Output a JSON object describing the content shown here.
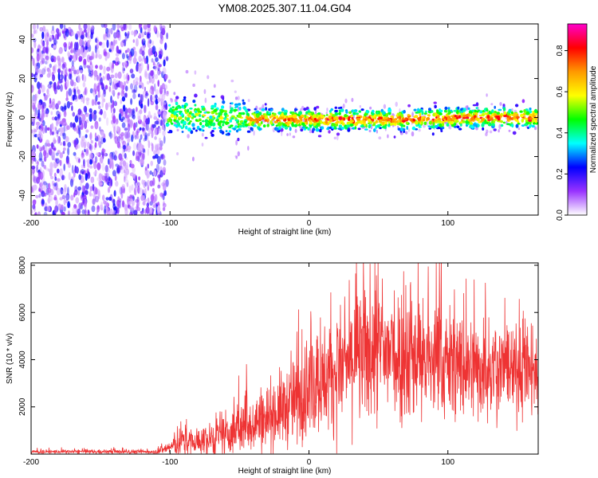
{
  "title": "YM08.2025.307.11.04.G04",
  "chart_data": [
    {
      "type": "heatmap",
      "xlabel": "Height of straight line (km)",
      "ylabel": "Frequency (Hz)",
      "xlim": [
        -200,
        165
      ],
      "ylim": [
        -50,
        48
      ],
      "xticks": [
        -200,
        -100,
        0,
        100
      ],
      "xtick_labels": [
        "-200",
        "-100",
        "0",
        "100"
      ],
      "yticks": [
        -40,
        -20,
        0,
        20,
        40
      ],
      "ytick_labels": [
        "-40",
        "-20",
        "0",
        "20",
        "40"
      ],
      "noise_region_x": [
        -200,
        -102
      ],
      "signal_center_hz": [
        {
          "x": -102,
          "y": 1
        },
        {
          "x": -80,
          "y": 1
        },
        {
          "x": -60,
          "y": 0
        },
        {
          "x": -40,
          "y": -1
        },
        {
          "x": 0,
          "y": -1
        },
        {
          "x": 60,
          "y": -1
        },
        {
          "x": 120,
          "y": 0
        },
        {
          "x": 165,
          "y": 0
        }
      ],
      "colorbar": {
        "label": "Normalized spectral amplitude",
        "range": [
          0.0,
          0.93
        ],
        "ticks": [
          0.0,
          0.2,
          0.4,
          0.6,
          0.8
        ],
        "tick_labels": [
          "0.0",
          "0.2",
          "0.4",
          "0.6",
          "0.8"
        ],
        "colors": [
          "#ffffff",
          "#9933ff",
          "#0000ff",
          "#00ffff",
          "#00ff00",
          "#ffff00",
          "#ff9900",
          "#ff0000",
          "#ff00cc"
        ]
      }
    },
    {
      "type": "line",
      "xlabel": "Height of straight line (km)",
      "ylabel": "SNR (10 * v/v)",
      "xlim": [
        -200,
        165
      ],
      "ylim": [
        0,
        8100
      ],
      "xticks": [
        -200,
        -100,
        0,
        100
      ],
      "xtick_labels": [
        "-200",
        "-100",
        "0",
        "100"
      ],
      "yticks": [
        2000,
        4000,
        6000,
        8000
      ],
      "ytick_labels": [
        "2000",
        "4000",
        "6000",
        "8000"
      ],
      "color": "#ee3333",
      "series": [
        {
          "name": "SNR",
          "envelope": [
            {
              "x": -200,
              "mean": 100,
              "spread": 80
            },
            {
              "x": -110,
              "mean": 100,
              "spread": 80
            },
            {
              "x": -100,
              "mean": 300,
              "spread": 300
            },
            {
              "x": -90,
              "mean": 500,
              "spread": 600
            },
            {
              "x": -80,
              "mean": 500,
              "spread": 600
            },
            {
              "x": -60,
              "mean": 700,
              "spread": 700
            },
            {
              "x": -50,
              "mean": 1100,
              "spread": 1000
            },
            {
              "x": -30,
              "mean": 1600,
              "spread": 1300
            },
            {
              "x": -10,
              "mean": 2200,
              "spread": 1600
            },
            {
              "x": 0,
              "mean": 2800,
              "spread": 1800
            },
            {
              "x": 20,
              "mean": 3500,
              "spread": 2200
            },
            {
              "x": 40,
              "mean": 4200,
              "spread": 2600
            },
            {
              "x": 60,
              "mean": 4300,
              "spread": 2700
            },
            {
              "x": 80,
              "mean": 4000,
              "spread": 2400
            },
            {
              "x": 100,
              "mean": 3800,
              "spread": 2200
            },
            {
              "x": 120,
              "mean": 3600,
              "spread": 2000
            },
            {
              "x": 140,
              "mean": 3600,
              "spread": 1800
            },
            {
              "x": 165,
              "mean": 3400,
              "spread": 1600
            }
          ]
        }
      ]
    }
  ]
}
